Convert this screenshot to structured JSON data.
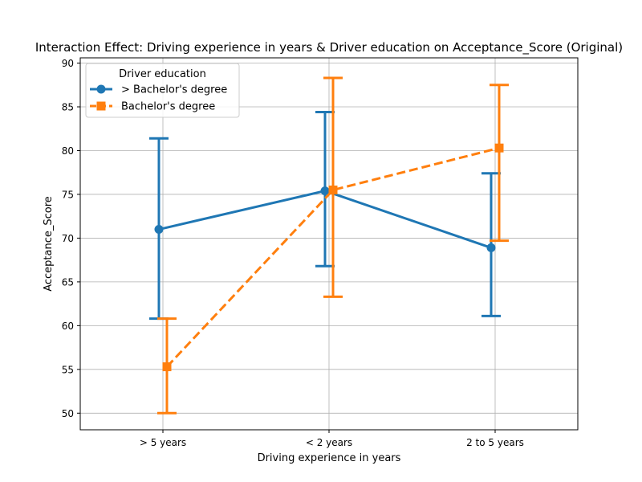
{
  "chart_data": {
    "type": "line",
    "title": "Interaction Effect: Driving experience in years & Driver education on Acceptance_Score (Original)",
    "xlabel": "Driving experience in years",
    "ylabel": "Acceptance_Score",
    "categories": [
      "> 5 years",
      "< 2 years",
      "2 to 5 years"
    ],
    "ylim": [
      48.1,
      90.6
    ],
    "yticks": [
      50,
      55,
      60,
      65,
      70,
      75,
      80,
      85,
      90
    ],
    "grid": true,
    "legend": {
      "title": "Driver education",
      "placement": "upper-left"
    },
    "series": [
      {
        "name": "> Bachelor's degree",
        "color": "#1f77b4",
        "marker": "circle",
        "linestyle": "solid",
        "values": [
          71.0,
          75.4,
          68.9
        ],
        "ci_low": [
          60.8,
          66.8,
          61.1
        ],
        "ci_high": [
          81.4,
          84.4,
          77.4
        ]
      },
      {
        "name": "Bachelor's degree",
        "color": "#ff7f0e",
        "marker": "square",
        "linestyle": "dashed",
        "values": [
          55.3,
          75.5,
          80.3
        ],
        "ci_low": [
          50.0,
          63.3,
          69.7
        ],
        "ci_high": [
          60.8,
          88.3,
          87.5
        ]
      }
    ]
  }
}
